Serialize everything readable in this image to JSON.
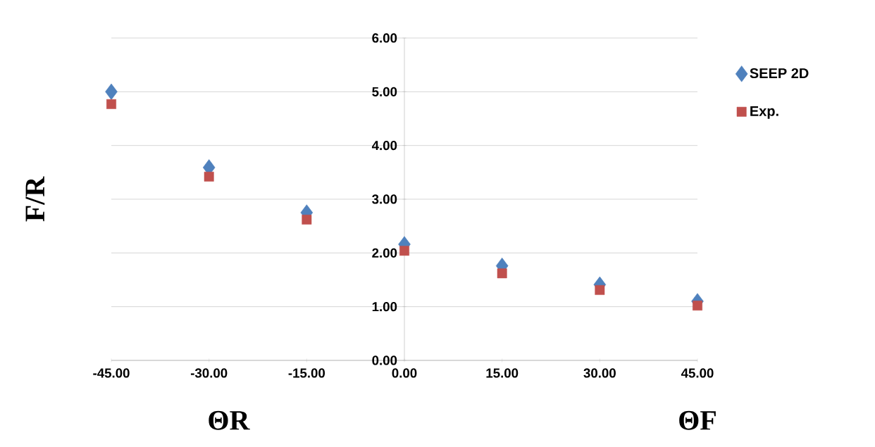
{
  "chart_data": {
    "type": "scatter",
    "ylabel": "F/R",
    "annotations": [
      "ΘR",
      "ΘF"
    ],
    "x": [
      -45,
      -30,
      -15,
      0,
      15,
      30,
      45
    ],
    "series": [
      {
        "name": "SEEP 2D",
        "color": "#4f81bd",
        "marker": "diamond",
        "values": [
          5.0,
          3.59,
          2.75,
          2.16,
          1.76,
          1.41,
          1.1
        ]
      },
      {
        "name": "Exp.",
        "color": "#c0504d",
        "marker": "square",
        "values": [
          4.77,
          3.42,
          2.62,
          2.04,
          1.62,
          1.31,
          1.02
        ]
      }
    ],
    "xlim": [
      -45,
      45
    ],
    "ylim": [
      0,
      6
    ],
    "xticks": [
      {
        "value": -45,
        "label": "-45.00"
      },
      {
        "value": -30,
        "label": "-30.00"
      },
      {
        "value": -15,
        "label": "-15.00"
      },
      {
        "value": 0,
        "label": "0.00"
      },
      {
        "value": 15,
        "label": "15.00"
      },
      {
        "value": 30,
        "label": "30.00"
      },
      {
        "value": 45,
        "label": "45.00"
      }
    ],
    "yticks": [
      {
        "value": 0,
        "label": "0.00"
      },
      {
        "value": 1,
        "label": "1.00"
      },
      {
        "value": 2,
        "label": "2.00"
      },
      {
        "value": 3,
        "label": "3.00"
      },
      {
        "value": 4,
        "label": "4.00"
      },
      {
        "value": 5,
        "label": "5.00"
      },
      {
        "value": 6,
        "label": "6.00"
      }
    ],
    "grid": "y",
    "legend": "top right"
  }
}
